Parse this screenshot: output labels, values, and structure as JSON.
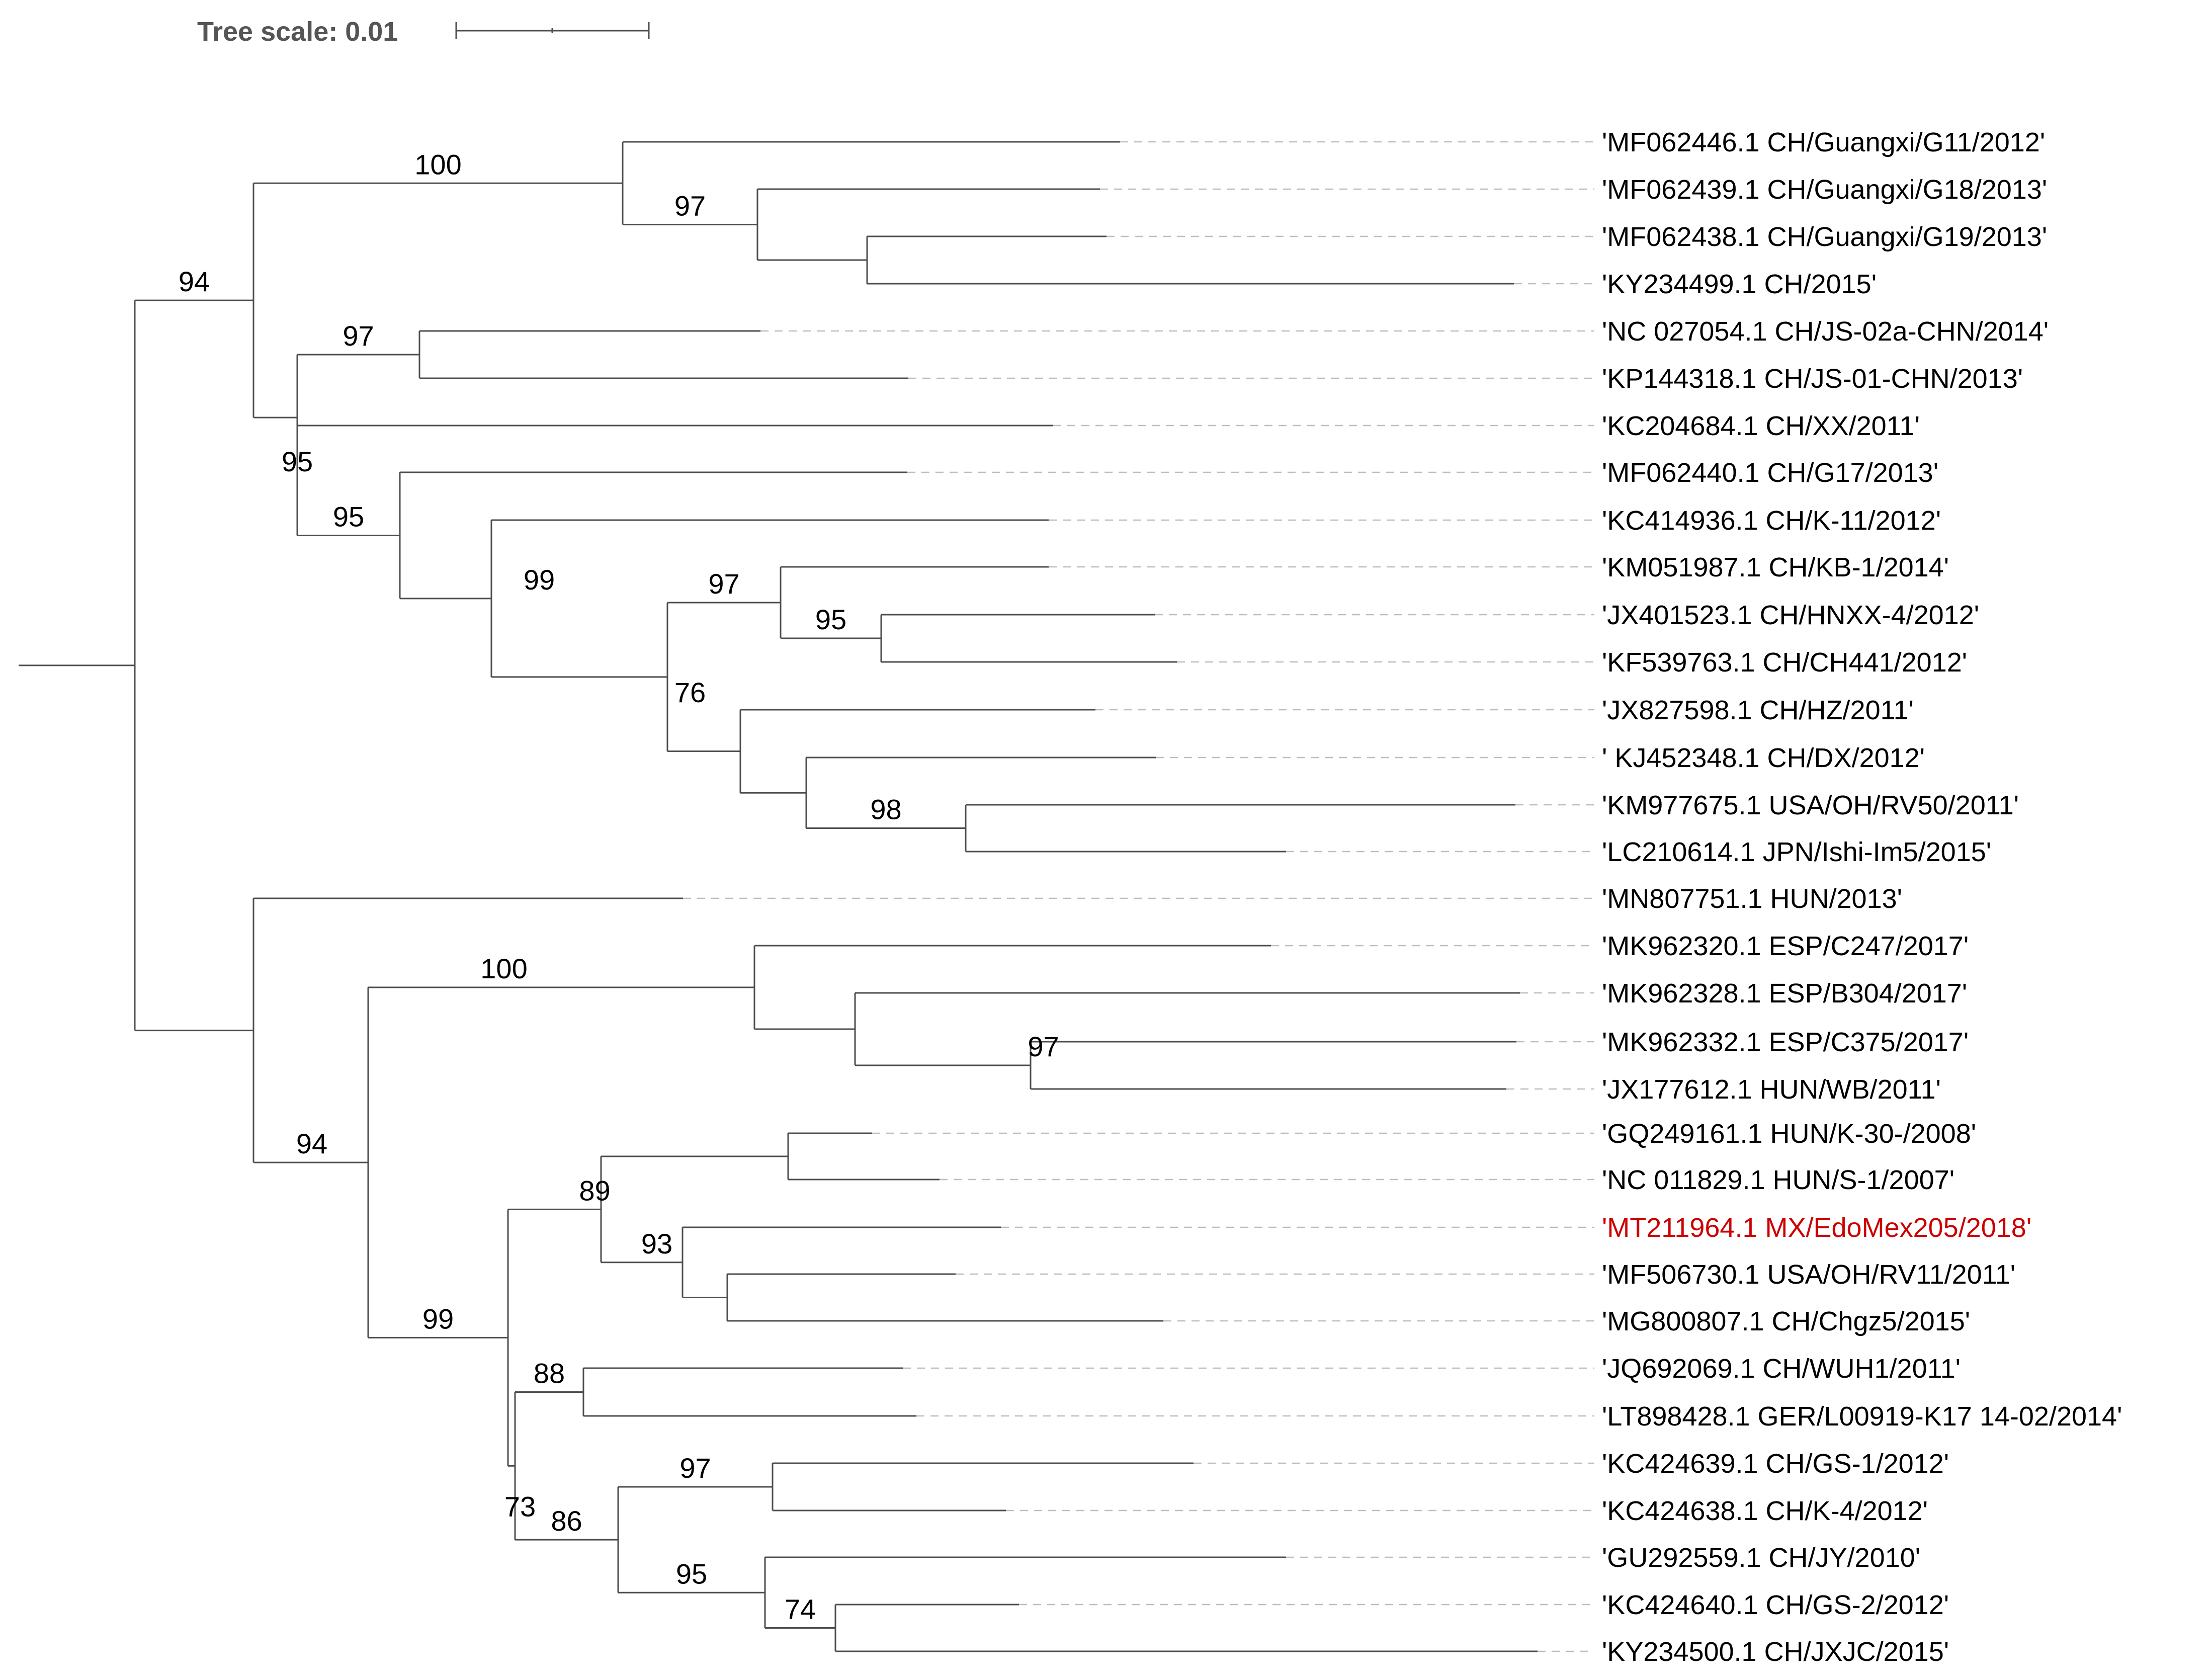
{
  "tree_scale": {
    "label": "Tree scale: 0.01"
  },
  "colors": {
    "branch": "#4d4d4d",
    "leader": "#bdbdbd",
    "label": "#000000",
    "highlight": "#cc0000"
  },
  "leaves": [
    {
      "label": "'MF062446.1 CH/Guangxi/G11/2012'"
    },
    {
      "label": "'MF062439.1 CH/Guangxi/G18/2013'"
    },
    {
      "label": "'MF062438.1 CH/Guangxi/G19/2013'"
    },
    {
      "label": "'KY234499.1 CH/2015'"
    },
    {
      "label": "'NC 027054.1 CH/JS-02a-CHN/2014'"
    },
    {
      "label": "'KP144318.1 CH/JS-01-CHN/2013'"
    },
    {
      "label": "'KC204684.1 CH/XX/2011'"
    },
    {
      "label": "'MF062440.1 CH/G17/2013'"
    },
    {
      "label": "'KC414936.1 CH/K-11/2012'"
    },
    {
      "label": "'KM051987.1 CH/KB-1/2014'"
    },
    {
      "label": "'JX401523.1 CH/HNXX-4/2012'"
    },
    {
      "label": "'KF539763.1 CH/CH441/2012'"
    },
    {
      "label": "'JX827598.1 CH/HZ/2011'"
    },
    {
      "label": "' KJ452348.1 CH/DX/2012'"
    },
    {
      "label": "'KM977675.1 USA/OH/RV50/2011'"
    },
    {
      "label": "'LC210614.1 JPN/Ishi-Im5/2015'"
    },
    {
      "label": "'MN807751.1 HUN/2013'"
    },
    {
      "label": "'MK962320.1 ESP/C247/2017'"
    },
    {
      "label": "'MK962328.1 ESP/B304/2017'"
    },
    {
      "label": "'MK962332.1 ESP/C375/2017'"
    },
    {
      "label": "'JX177612.1 HUN/WB/2011'"
    },
    {
      "label": "'GQ249161.1 HUN/K-30-/2008'"
    },
    {
      "label": "'NC 011829.1 HUN/S-1/2007'"
    },
    {
      "label": "'MT211964.1 MX/EdoMex205/2018'",
      "highlight": true
    },
    {
      "label": "'MF506730.1 USA/OH/RV11/2011'"
    },
    {
      "label": "'MG800807.1 CH/Chgz5/2015'"
    },
    {
      "label": "'JQ692069.1 CH/WUH1/2011'"
    },
    {
      "label": "'LT898428.1 GER/L00919-K17 14-02/2014'"
    },
    {
      "label": "'KC424639.1 CH/GS-1/2012'"
    },
    {
      "label": "'KC424638.1 CH/K-4/2012'"
    },
    {
      "label": "'GU292559.1 CH/JY/2010'"
    },
    {
      "label": "'KC424640.1 CH/GS-2/2012'"
    },
    {
      "label": "'KY234500.1 CH/JXJC/2015'"
    }
  ],
  "support_values": [
    "100",
    "97",
    "94",
    "97",
    "95",
    "95",
    "99",
    "97",
    "95",
    "76",
    "98",
    "100",
    "97",
    "94",
    "89",
    "93",
    "99",
    "88",
    "73",
    "97",
    "86",
    "95",
    "74"
  ]
}
